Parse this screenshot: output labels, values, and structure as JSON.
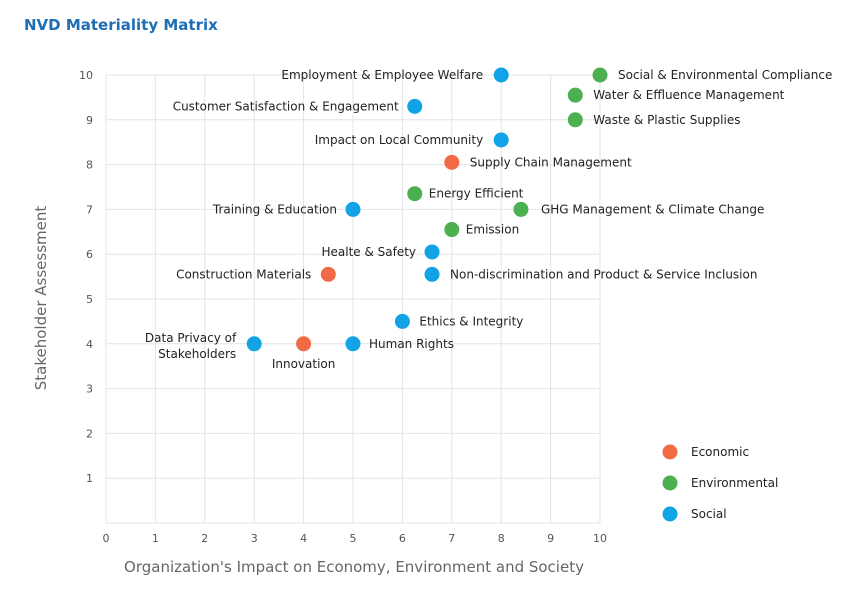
{
  "chart_data": {
    "type": "scatter",
    "title": "NVD Materiality Matrix",
    "xlabel": "Organization's Impact on Economy, Environment and Society",
    "ylabel": "Stakeholder Assessment",
    "xlim": [
      0,
      10
    ],
    "ylim": [
      0,
      10
    ],
    "x_ticks": [
      0,
      1,
      2,
      3,
      4,
      5,
      6,
      7,
      8,
      9,
      10
    ],
    "y_ticks": [
      1,
      2,
      3,
      4,
      5,
      6,
      7,
      8,
      9,
      10
    ],
    "grid": true,
    "legend_position": "bottom-right",
    "categories": [
      {
        "name": "Economic",
        "color": "#f26a45"
      },
      {
        "name": "Environmental",
        "color": "#4caf50"
      },
      {
        "name": "Social",
        "color": "#12a3e6"
      }
    ],
    "points": [
      {
        "label": "Employment & Employee Welfare",
        "x": 8.0,
        "y": 10.0,
        "category": "Social"
      },
      {
        "label": "Social & Environmental Compliance",
        "x": 10.0,
        "y": 10.0,
        "category": "Environmental"
      },
      {
        "label": "Water & Effluence Management",
        "x": 9.5,
        "y": 9.55,
        "category": "Environmental"
      },
      {
        "label": "Waste & Plastic Supplies",
        "x": 9.5,
        "y": 9.0,
        "category": "Environmental"
      },
      {
        "label": "Customer Satisfaction & Engagement",
        "x": 6.25,
        "y": 9.3,
        "category": "Social"
      },
      {
        "label": "Impact on Local Community",
        "x": 8.0,
        "y": 8.55,
        "category": "Social"
      },
      {
        "label": "Supply Chain Management",
        "x": 7.0,
        "y": 8.05,
        "category": "Economic"
      },
      {
        "label": "Energy Efficient",
        "x": 6.25,
        "y": 7.35,
        "category": "Environmental"
      },
      {
        "label": "GHG Management & Climate Change",
        "x": 8.4,
        "y": 7.0,
        "category": "Environmental"
      },
      {
        "label": "Training & Education",
        "x": 5.0,
        "y": 7.0,
        "category": "Social"
      },
      {
        "label": "Emission",
        "x": 7.0,
        "y": 6.55,
        "category": "Environmental"
      },
      {
        "label": "Healte & Safety",
        "x": 6.6,
        "y": 6.05,
        "category": "Social"
      },
      {
        "label": "Construction Materials",
        "x": 4.5,
        "y": 5.55,
        "category": "Economic"
      },
      {
        "label": "Non-discrimination and Product & Service Inclusion",
        "x": 6.6,
        "y": 5.55,
        "category": "Social"
      },
      {
        "label": "Ethics & Integrity",
        "x": 6.0,
        "y": 4.5,
        "category": "Social"
      },
      {
        "label": "Data Privacy of\nStakeholders",
        "x": 3.0,
        "y": 4.0,
        "category": "Social"
      },
      {
        "label": "Innovation",
        "x": 4.0,
        "y": 4.0,
        "category": "Economic"
      },
      {
        "label": "Human Rights",
        "x": 5.0,
        "y": 4.0,
        "category": "Social"
      }
    ]
  }
}
